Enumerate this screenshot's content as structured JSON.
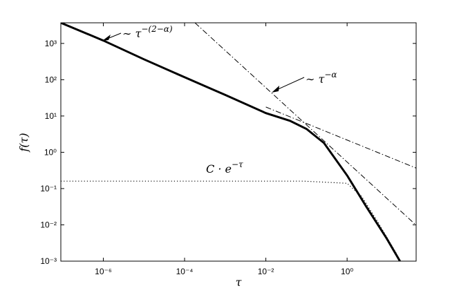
{
  "chart_data": {
    "type": "line",
    "x_label": "τ",
    "y_label": "f(τ)",
    "log_x": true,
    "log_y": true,
    "xlim": [
      9e-08,
      50
    ],
    "ylim": [
      0.001,
      3700
    ],
    "xticks": [
      {
        "value": 1e-06,
        "label": "10⁻⁶"
      },
      {
        "value": 0.0001,
        "label": "10⁻⁴"
      },
      {
        "value": 0.01,
        "label": "10⁻²"
      },
      {
        "value": 1,
        "label": "10⁰"
      }
    ],
    "yticks": [
      {
        "value": 0.001,
        "label": "10⁻³"
      },
      {
        "value": 0.01,
        "label": "10⁻²"
      },
      {
        "value": 0.1,
        "label": "10⁻¹"
      },
      {
        "value": 1,
        "label": "10⁰"
      },
      {
        "value": 10,
        "label": "10¹"
      },
      {
        "value": 100,
        "label": "10²"
      },
      {
        "value": 1000,
        "label": "10³"
      }
    ],
    "series": [
      {
        "color": "#000000",
        "style": "solid",
        "width": 3,
        "x": [
          9e-08,
          1e-06,
          1e-05,
          0.0001,
          0.001,
          0.01,
          0.039,
          0.1,
          0.27,
          1,
          2.9,
          9.3,
          20
        ],
        "values": [
          3700,
          1200,
          365,
          117,
          38,
          12,
          7.4,
          4.4,
          1.8,
          0.23,
          0.033,
          0.0043,
          0.001
        ]
      },
      {
        "color": "#000000",
        "style": "dotted",
        "width": 1.2,
        "x": [
          9e-08,
          0.085,
          1,
          2.3,
          5.7,
          17
        ],
        "values": [
          0.16,
          0.16,
          0.14,
          0.06,
          0.012,
          0.0015
        ]
      },
      {
        "color": "#000000",
        "style": "dashdot",
        "width": 1,
        "x": [
          0.00018,
          49
        ],
        "values": [
          3700,
          0.01
        ]
      },
      {
        "color": "#000000",
        "style": "dashdot",
        "width": 1,
        "x": [
          0.01,
          49
        ],
        "values": [
          17.7,
          0.37
        ]
      }
    ],
    "annotations": [
      {
        "text": "∼ τ",
        "sup": "−(2−α)"
      },
      {
        "text": "∼ τ",
        "sup": "−α"
      },
      {
        "text": "C · e",
        "sup": "−τ"
      }
    ]
  }
}
